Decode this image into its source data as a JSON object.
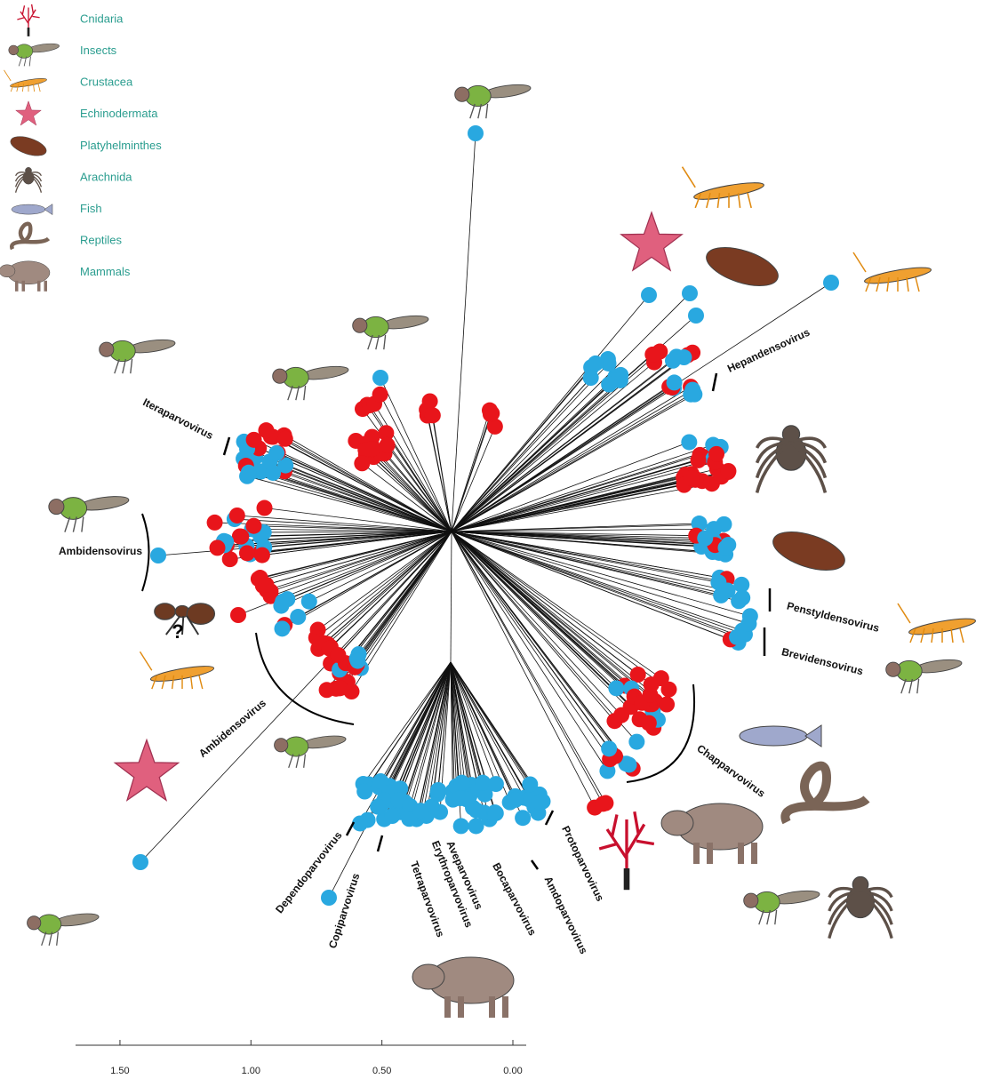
{
  "legend": [
    {
      "label": "Cnidaria"
    },
    {
      "label": "Insects"
    },
    {
      "label": "Crustacea"
    },
    {
      "label": "Echinodermata"
    },
    {
      "label": "Platyhelminthes"
    },
    {
      "label": "Arachnida"
    },
    {
      "label": "Fish"
    },
    {
      "label": "Reptiles"
    },
    {
      "label": "Mammals"
    }
  ],
  "clades": [
    {
      "label": "Iteraparvovirus"
    },
    {
      "label": "Hepandensovirus"
    },
    {
      "label": "Ambidensovirus"
    },
    {
      "label": "Ambidensovirus"
    },
    {
      "label": "Penstyldensovirus"
    },
    {
      "label": "Brevidensovirus"
    },
    {
      "label": "Chapparvovirus"
    },
    {
      "label": "Dependoparvovirus"
    },
    {
      "label": "Copiparvovirus"
    },
    {
      "label": "Tetraparvovirus"
    },
    {
      "label": "Erythroparvovirus"
    },
    {
      "label": "Aveparvovirus"
    },
    {
      "label": "Bocaparvovirus"
    },
    {
      "label": "Amdoparvovirus"
    },
    {
      "label": "Protoparvovirus"
    }
  ],
  "annotation": "?",
  "scale_bar": {
    "ticks": [
      {
        "value": 1.5,
        "label": "1.50"
      },
      {
        "value": 1.0,
        "label": "1.00"
      },
      {
        "value": 0.5,
        "label": "0.50"
      },
      {
        "value": 0.0,
        "label": "0.00"
      }
    ]
  }
}
